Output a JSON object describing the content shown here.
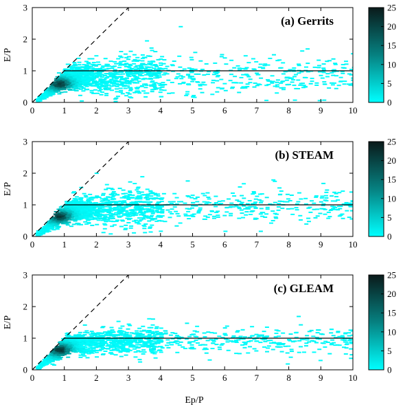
{
  "figure": {
    "xlabel": "Ep/P"
  },
  "chart_data": [
    {
      "type": "heatmap",
      "title": "(a) Gerrits",
      "ylabel": "E/P",
      "xlim": [
        0,
        10
      ],
      "ylim": [
        0,
        3
      ],
      "xticks": [
        0,
        1,
        2,
        3,
        4,
        5,
        6,
        7,
        8,
        9,
        10
      ],
      "yticks": [
        0,
        1,
        2,
        3
      ],
      "colorbar": {
        "min": 0,
        "max": 25,
        "ticks": [
          0,
          5,
          10,
          15,
          20,
          25
        ],
        "colors": [
          "#00ffff",
          "#0a1a1a"
        ]
      },
      "reference_lines": [
        {
          "name": "energy-limit",
          "style": "dashed",
          "points": [
            [
              0,
              0
            ],
            [
              3,
              3
            ]
          ]
        },
        {
          "name": "water-limit",
          "style": "solid",
          "points": [
            [
              1,
              1
            ],
            [
              10,
              1
            ]
          ]
        }
      ],
      "density_profile": {
        "peak_x": 0.8,
        "peak_y": 0.6,
        "plateau_y": 0.85,
        "spread_y": 0.33
      }
    },
    {
      "type": "heatmap",
      "title": "(b) STEAM",
      "ylabel": "E/P",
      "xlim": [
        0,
        10
      ],
      "ylim": [
        0,
        3
      ],
      "xticks": [
        0,
        1,
        2,
        3,
        4,
        5,
        6,
        7,
        8,
        9,
        10
      ],
      "yticks": [
        0,
        1,
        2,
        3
      ],
      "colorbar": {
        "min": 0,
        "max": 25,
        "ticks": [
          0,
          5,
          10,
          15,
          20,
          25
        ],
        "colors": [
          "#00ffff",
          "#0a1a1a"
        ]
      },
      "reference_lines": [
        {
          "name": "energy-limit",
          "style": "dashed",
          "points": [
            [
              0,
              0
            ],
            [
              3,
              3
            ]
          ]
        },
        {
          "name": "water-limit",
          "style": "solid",
          "points": [
            [
              1,
              1
            ],
            [
              10,
              1
            ]
          ]
        }
      ],
      "density_profile": {
        "peak_x": 0.8,
        "peak_y": 0.65,
        "plateau_y": 0.95,
        "spread_y": 0.3
      }
    },
    {
      "type": "heatmap",
      "title": "(c) GLEAM",
      "ylabel": "E/P",
      "xlim": [
        0,
        10
      ],
      "ylim": [
        0,
        3
      ],
      "xticks": [
        0,
        1,
        2,
        3,
        4,
        5,
        6,
        7,
        8,
        9,
        10
      ],
      "yticks": [
        0,
        1,
        2,
        3
      ],
      "colorbar": {
        "min": 0,
        "max": 25,
        "ticks": [
          0,
          5,
          10,
          15,
          20,
          25
        ],
        "colors": [
          "#00ffff",
          "#0a1a1a"
        ]
      },
      "reference_lines": [
        {
          "name": "energy-limit",
          "style": "dashed",
          "points": [
            [
              0,
              0
            ],
            [
              3,
              3
            ]
          ]
        },
        {
          "name": "water-limit",
          "style": "solid",
          "points": [
            [
              1,
              1
            ],
            [
              10,
              1
            ]
          ]
        }
      ],
      "density_profile": {
        "peak_x": 0.8,
        "peak_y": 0.65,
        "plateau_y": 0.95,
        "spread_y": 0.22
      }
    }
  ]
}
